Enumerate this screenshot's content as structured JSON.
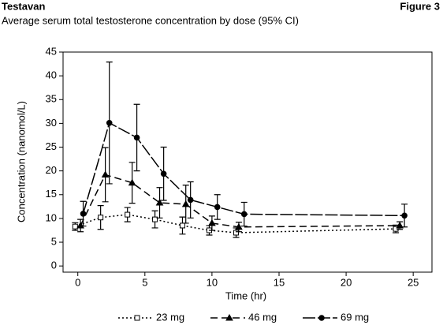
{
  "chart_data": {
    "type": "line",
    "title": "Testavan",
    "figure_label": "Figure 3",
    "subtitle": "Average serum total testosterone concentration by dose (95% CI)",
    "x_label": "Time (hr)",
    "y_label": "Concentration (nanomol/L)",
    "xlim": [
      -1.1,
      26.4
    ],
    "xticks": [
      0,
      5,
      10,
      15,
      20,
      25
    ],
    "ylim": [
      -1.3,
      45
    ],
    "yticks": [
      0,
      5,
      10,
      15,
      20,
      25,
      30,
      35,
      40,
      45
    ],
    "series": [
      {
        "name": "23 mg",
        "color": "#000000",
        "marker": "square",
        "dash": "2,3",
        "x": [
          -0.2,
          1.7,
          3.7,
          5.75,
          7.8,
          9.8,
          11.8,
          23.7
        ],
        "values": [
          8.3,
          10.2,
          10.8,
          9.8,
          8.5,
          7.5,
          7.0,
          7.8
        ],
        "errors": [
          0.8,
          2.5,
          1.5,
          1.8,
          1.8,
          1.0,
          1.0,
          0.8
        ]
      },
      {
        "name": "46 mg",
        "color": "#000000",
        "marker": "triangle",
        "dash": "9,5",
        "x": [
          0.2,
          2.05,
          4.05,
          6.1,
          8.05,
          10.0,
          12.0,
          24.0
        ],
        "values": [
          8.5,
          19.2,
          17.5,
          13.3,
          13.0,
          9.0,
          8.2,
          8.5
        ],
        "errors": [
          1.3,
          5.7,
          4.3,
          3.2,
          4.0,
          1.5,
          1.0,
          0.8
        ]
      },
      {
        "name": "69 mg",
        "color": "#000000",
        "marker": "circle",
        "dash": "16,3",
        "x": [
          0.4,
          2.35,
          4.4,
          6.4,
          8.4,
          10.4,
          12.4,
          24.35
        ],
        "values": [
          11.0,
          30.1,
          27.0,
          19.4,
          13.9,
          12.4,
          10.9,
          10.6
        ],
        "errors": [
          2.6,
          12.8,
          7.0,
          5.6,
          3.8,
          2.6,
          2.5,
          2.4
        ]
      }
    ]
  }
}
